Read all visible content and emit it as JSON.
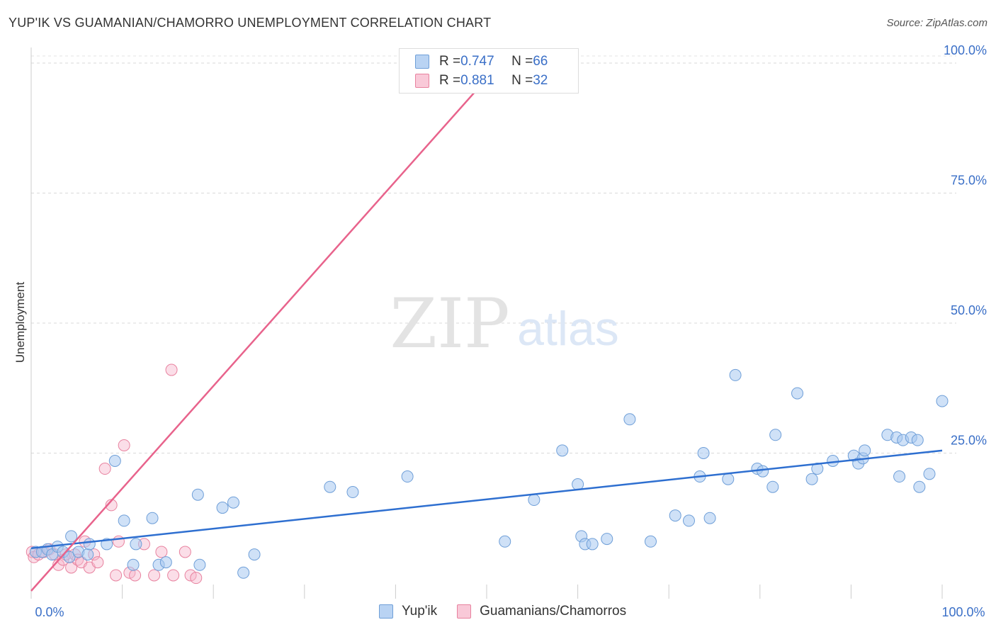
{
  "header": {
    "title": "YUP'IK VS GUAMANIAN/CHAMORRO UNEMPLOYMENT CORRELATION CHART",
    "source": "Source: ZipAtlas.com"
  },
  "watermark": {
    "zip": "ZIP",
    "atlas": "atlas"
  },
  "colors": {
    "blue_fill": "#a8c8f0",
    "blue_stroke": "#6f9fd8",
    "blue_line": "#2e6fd0",
    "pink_fill": "#f6b6cb",
    "pink_stroke": "#e8829f",
    "pink_line": "#e8638c",
    "tick_blue": "#3a6fc7"
  },
  "legend": {
    "rows": [
      {
        "r_label": "R = ",
        "r_value": "0.747",
        "n_label": "N = ",
        "n_value": "66",
        "color": "#a8c8f0"
      },
      {
        "r_label": "R = ",
        "r_value": "0.881",
        "n_label": "N = ",
        "n_value": "32",
        "color": "#f6b6cb"
      }
    ]
  },
  "bottom_legend": [
    {
      "label": "Yup'ik",
      "color": "#a8c8f0"
    },
    {
      "label": "Guamanians/Chamorros",
      "color": "#f6b6cb"
    }
  ],
  "chart_data": {
    "type": "scatter",
    "title": "YUP'IK VS GUAMANIAN/CHAMORRO UNEMPLOYMENT CORRELATION CHART",
    "xlabel": "",
    "ylabel": "Unemployment",
    "xlim": [
      0,
      100
    ],
    "ylim": [
      -3,
      103
    ],
    "x_tick_labels": [
      "0.0%",
      "100.0%"
    ],
    "y_ticks": [
      25,
      50,
      75,
      100
    ],
    "y_tick_labels": [
      "25.0%",
      "50.0%",
      "75.0%",
      "100.0%"
    ],
    "grid": true,
    "series": [
      {
        "name": "Yup'ik",
        "R": 0.747,
        "N": 66,
        "trend": {
          "x": [
            0,
            100
          ],
          "y": [
            6.7,
            25.5
          ]
        },
        "points": [
          [
            0.5,
            6
          ],
          [
            1.2,
            6
          ],
          [
            1.8,
            6.5
          ],
          [
            2.3,
            5.5
          ],
          [
            2.9,
            7
          ],
          [
            3.5,
            6
          ],
          [
            4.2,
            5
          ],
          [
            4.4,
            9
          ],
          [
            5.2,
            6
          ],
          [
            6.2,
            5.5
          ],
          [
            6.4,
            7.5
          ],
          [
            8.3,
            7.5
          ],
          [
            9.2,
            23.5
          ],
          [
            10.2,
            12
          ],
          [
            11.2,
            3.5
          ],
          [
            11.5,
            7.5
          ],
          [
            13.3,
            12.5
          ],
          [
            14,
            3.5
          ],
          [
            14.8,
            4
          ],
          [
            18.3,
            17
          ],
          [
            18.5,
            3.5
          ],
          [
            21,
            14.5
          ],
          [
            22.2,
            15.5
          ],
          [
            23.3,
            2
          ],
          [
            24.5,
            5.5
          ],
          [
            32.8,
            18.5
          ],
          [
            35.3,
            17.5
          ],
          [
            41.3,
            20.5
          ],
          [
            52,
            8
          ],
          [
            55.2,
            16
          ],
          [
            58.3,
            25.5
          ],
          [
            60,
            19
          ],
          [
            60.4,
            9
          ],
          [
            60.8,
            7.5
          ],
          [
            61.6,
            7.5
          ],
          [
            63.2,
            8.5
          ],
          [
            65.7,
            31.5
          ],
          [
            68,
            8
          ],
          [
            70.7,
            13
          ],
          [
            72.2,
            12
          ],
          [
            73.4,
            20.5
          ],
          [
            73.8,
            25
          ],
          [
            74.5,
            12.5
          ],
          [
            76.5,
            20
          ],
          [
            77.3,
            40
          ],
          [
            79.7,
            22
          ],
          [
            80.3,
            21.5
          ],
          [
            81.4,
            18.5
          ],
          [
            81.7,
            28.5
          ],
          [
            84.1,
            36.5
          ],
          [
            85.7,
            20
          ],
          [
            86.3,
            22
          ],
          [
            88,
            23.5
          ],
          [
            90.3,
            24.5
          ],
          [
            90.8,
            23
          ],
          [
            91.3,
            24
          ],
          [
            91.5,
            25.5
          ],
          [
            94,
            28.5
          ],
          [
            95,
            28
          ],
          [
            95.3,
            20.5
          ],
          [
            95.7,
            27.5
          ],
          [
            96.6,
            28
          ],
          [
            97.3,
            27.5
          ],
          [
            97.5,
            18.5
          ],
          [
            98.6,
            21
          ],
          [
            100,
            35
          ]
        ]
      },
      {
        "name": "Guamanians/Chamorros",
        "R": 0.881,
        "N": 32,
        "trend": {
          "x": [
            0,
            50
          ],
          "y": [
            -1.5,
            97
          ]
        },
        "points": [
          [
            0.1,
            6
          ],
          [
            0.3,
            5
          ],
          [
            0.8,
            5.5
          ],
          [
            1.4,
            6
          ],
          [
            2,
            6.5
          ],
          [
            2.6,
            5.5
          ],
          [
            3,
            3.5
          ],
          [
            3.5,
            4.5
          ],
          [
            3.8,
            5.5
          ],
          [
            4.4,
            3
          ],
          [
            4.8,
            5.5
          ],
          [
            5.1,
            4.5
          ],
          [
            5.5,
            4
          ],
          [
            5.9,
            8
          ],
          [
            6.4,
            3
          ],
          [
            6.9,
            5.5
          ],
          [
            7.3,
            4
          ],
          [
            8.1,
            22
          ],
          [
            8.8,
            15
          ],
          [
            9.3,
            1.5
          ],
          [
            9.6,
            8
          ],
          [
            10.2,
            26.5
          ],
          [
            10.8,
            2
          ],
          [
            11.4,
            1.5
          ],
          [
            12.4,
            7.5
          ],
          [
            13.5,
            1.5
          ],
          [
            14.3,
            6
          ],
          [
            15.6,
            1.5
          ],
          [
            16.9,
            6
          ],
          [
            17.5,
            1.5
          ],
          [
            15.4,
            41
          ],
          [
            18.1,
            1
          ]
        ]
      }
    ]
  }
}
